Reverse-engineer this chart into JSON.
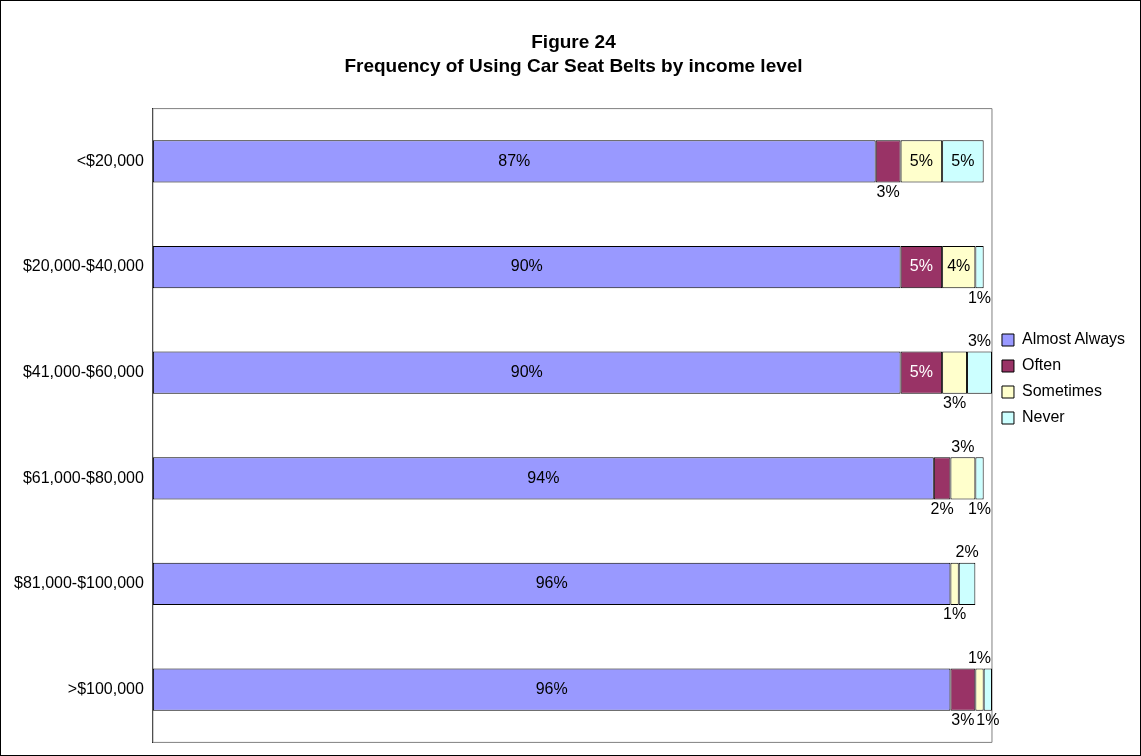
{
  "chart_data": {
    "type": "bar",
    "orientation": "horizontal",
    "stacked": true,
    "title": "Figure 24",
    "subtitle": "Frequency of Using Car Seat Belts by income level",
    "categories": [
      "<$20,000",
      "$20,000-$40,000",
      "$41,000-$60,000",
      "$61,000-$80,000",
      "$81,000-$100,000",
      ">$100,000"
    ],
    "series": [
      {
        "name": "Almost Always",
        "color": "#9999ff",
        "values": [
          87,
          90,
          90,
          94,
          96,
          96
        ],
        "value_labels": [
          "87%",
          "90%",
          "90%",
          "94%",
          "96%",
          "96%"
        ]
      },
      {
        "name": "Often",
        "color": "#993366",
        "values": [
          3,
          5,
          5,
          2,
          0,
          3
        ],
        "value_labels": [
          "3%",
          "5%",
          "5%",
          "2%",
          null,
          "3%"
        ]
      },
      {
        "name": "Sometimes",
        "color": "#ffffcc",
        "values": [
          5,
          4,
          3,
          3,
          1,
          1
        ],
        "value_labels": [
          "5%",
          "4%",
          "3%",
          "3%",
          "1%",
          "1%"
        ]
      },
      {
        "name": "Never",
        "color": "#ccffff",
        "values": [
          5,
          1,
          3,
          1,
          2,
          1
        ],
        "value_labels": [
          "5%",
          "1%",
          "3%",
          "1%",
          "2%",
          "1%"
        ]
      }
    ],
    "legend": "right",
    "grid": false
  }
}
